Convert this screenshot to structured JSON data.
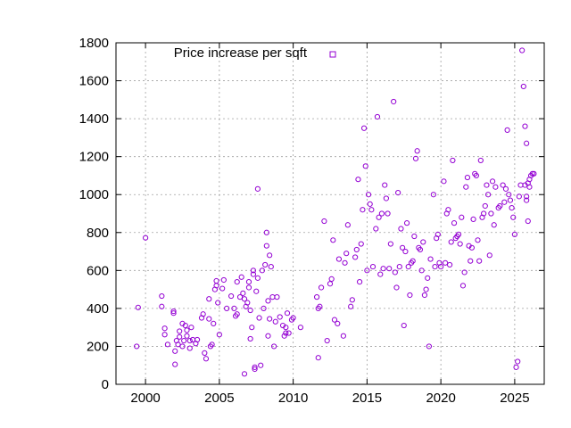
{
  "chart_data": {
    "type": "scatter",
    "title": "",
    "xlabel": "",
    "ylabel": "",
    "xlim": [
      1998,
      2027
    ],
    "ylim": [
      0,
      1800
    ],
    "xticks": [
      2000,
      2005,
      2010,
      2015,
      2020,
      2025
    ],
    "yticks": [
      0,
      200,
      400,
      600,
      800,
      1000,
      1200,
      1400,
      1600,
      1800
    ],
    "grid": true,
    "legend_position": "top",
    "series": [
      {
        "name": "Price increase per sqft",
        "color": "#9400d3",
        "marker": "open-circle",
        "points": [
          [
            1999.4,
            200
          ],
          [
            1999.5,
            405
          ],
          [
            2000.0,
            772
          ],
          [
            2001.1,
            465
          ],
          [
            2001.1,
            410
          ],
          [
            2001.3,
            295
          ],
          [
            2001.3,
            262
          ],
          [
            2001.5,
            210
          ],
          [
            2001.9,
            385
          ],
          [
            2001.9,
            375
          ],
          [
            2002.0,
            105
          ],
          [
            2002.0,
            175
          ],
          [
            2002.1,
            230
          ],
          [
            2002.2,
            210
          ],
          [
            2002.3,
            280
          ],
          [
            2002.3,
            250
          ],
          [
            2002.5,
            320
          ],
          [
            2002.5,
            200
          ],
          [
            2002.6,
            230
          ],
          [
            2002.7,
            310
          ],
          [
            2002.8,
            285
          ],
          [
            2002.8,
            255
          ],
          [
            2003.0,
            230
          ],
          [
            2003.0,
            190
          ],
          [
            2003.1,
            300
          ],
          [
            2003.2,
            235
          ],
          [
            2003.4,
            215
          ],
          [
            2003.5,
            235
          ],
          [
            2003.8,
            350
          ],
          [
            2003.9,
            370
          ],
          [
            2004.0,
            165
          ],
          [
            2004.1,
            135
          ],
          [
            2004.3,
            345
          ],
          [
            2004.3,
            450
          ],
          [
            2004.4,
            200
          ],
          [
            2004.5,
            210
          ],
          [
            2004.6,
            320
          ],
          [
            2004.7,
            500
          ],
          [
            2004.8,
            545
          ],
          [
            2004.8,
            520
          ],
          [
            2004.9,
            430
          ],
          [
            2005.0,
            262
          ],
          [
            2005.2,
            505
          ],
          [
            2005.3,
            550
          ],
          [
            2005.5,
            400
          ],
          [
            2005.8,
            465
          ],
          [
            2006.0,
            400
          ],
          [
            2006.1,
            360
          ],
          [
            2006.2,
            540
          ],
          [
            2006.2,
            370
          ],
          [
            2006.4,
            460
          ],
          [
            2006.5,
            565
          ],
          [
            2006.6,
            480
          ],
          [
            2006.7,
            55
          ],
          [
            2006.7,
            450
          ],
          [
            2006.8,
            410
          ],
          [
            2006.9,
            430
          ],
          [
            2007.0,
            540
          ],
          [
            2007.0,
            510
          ],
          [
            2007.1,
            390
          ],
          [
            2007.1,
            240
          ],
          [
            2007.2,
            300
          ],
          [
            2007.3,
            580
          ],
          [
            2007.3,
            600
          ],
          [
            2007.4,
            90
          ],
          [
            2007.4,
            80
          ],
          [
            2007.5,
            490
          ],
          [
            2007.6,
            560
          ],
          [
            2007.6,
            1030
          ],
          [
            2007.7,
            350
          ],
          [
            2007.8,
            100
          ],
          [
            2007.9,
            600
          ],
          [
            2008.0,
            400
          ],
          [
            2008.1,
            630
          ],
          [
            2008.2,
            730
          ],
          [
            2008.2,
            800
          ],
          [
            2008.3,
            440
          ],
          [
            2008.3,
            255
          ],
          [
            2008.4,
            680
          ],
          [
            2008.4,
            345
          ],
          [
            2008.5,
            620
          ],
          [
            2008.6,
            460
          ],
          [
            2008.7,
            200
          ],
          [
            2008.8,
            330
          ],
          [
            2008.9,
            460
          ],
          [
            2009.1,
            355
          ],
          [
            2009.3,
            310
          ],
          [
            2009.4,
            255
          ],
          [
            2009.5,
            270
          ],
          [
            2009.5,
            300
          ],
          [
            2009.6,
            375
          ],
          [
            2009.7,
            270
          ],
          [
            2009.9,
            340
          ],
          [
            2010.0,
            350
          ],
          [
            2010.5,
            300
          ],
          [
            2011.6,
            460
          ],
          [
            2011.7,
            400
          ],
          [
            2011.7,
            140
          ],
          [
            2011.8,
            410
          ],
          [
            2011.9,
            510
          ],
          [
            2012.1,
            860
          ],
          [
            2012.3,
            230
          ],
          [
            2012.5,
            530
          ],
          [
            2012.6,
            555
          ],
          [
            2012.7,
            760
          ],
          [
            2012.8,
            340
          ],
          [
            2013.0,
            320
          ],
          [
            2013.1,
            660
          ],
          [
            2013.4,
            255
          ],
          [
            2013.5,
            640
          ],
          [
            2013.6,
            690
          ],
          [
            2013.7,
            840
          ],
          [
            2013.9,
            410
          ],
          [
            2014.0,
            445
          ],
          [
            2014.2,
            670
          ],
          [
            2014.3,
            710
          ],
          [
            2014.4,
            1080
          ],
          [
            2014.5,
            540
          ],
          [
            2014.6,
            740
          ],
          [
            2014.7,
            920
          ],
          [
            2014.8,
            1350
          ],
          [
            2014.9,
            1150
          ],
          [
            2015.0,
            600
          ],
          [
            2015.1,
            1000
          ],
          [
            2015.2,
            950
          ],
          [
            2015.3,
            920
          ],
          [
            2015.4,
            620
          ],
          [
            2015.6,
            820
          ],
          [
            2015.7,
            1410
          ],
          [
            2015.8,
            880
          ],
          [
            2015.9,
            580
          ],
          [
            2016.0,
            900
          ],
          [
            2016.1,
            610
          ],
          [
            2016.2,
            1050
          ],
          [
            2016.3,
            980
          ],
          [
            2016.4,
            900
          ],
          [
            2016.5,
            610
          ],
          [
            2016.6,
            740
          ],
          [
            2016.8,
            1490
          ],
          [
            2016.9,
            590
          ],
          [
            2017.0,
            510
          ],
          [
            2017.1,
            1010
          ],
          [
            2017.2,
            620
          ],
          [
            2017.3,
            820
          ],
          [
            2017.4,
            720
          ],
          [
            2017.5,
            310
          ],
          [
            2017.6,
            700
          ],
          [
            2017.7,
            850
          ],
          [
            2017.8,
            620
          ],
          [
            2017.9,
            470
          ],
          [
            2018.0,
            640
          ],
          [
            2018.1,
            650
          ],
          [
            2018.2,
            780
          ],
          [
            2018.3,
            1190
          ],
          [
            2018.4,
            1230
          ],
          [
            2018.5,
            720
          ],
          [
            2018.6,
            710
          ],
          [
            2018.7,
            600
          ],
          [
            2018.8,
            750
          ],
          [
            2018.9,
            470
          ],
          [
            2019.0,
            500
          ],
          [
            2019.1,
            560
          ],
          [
            2019.2,
            200
          ],
          [
            2019.3,
            660
          ],
          [
            2019.5,
            1000
          ],
          [
            2019.6,
            620
          ],
          [
            2019.7,
            770
          ],
          [
            2019.8,
            790
          ],
          [
            2019.9,
            640
          ],
          [
            2020.0,
            620
          ],
          [
            2020.2,
            1070
          ],
          [
            2020.3,
            640
          ],
          [
            2020.4,
            900
          ],
          [
            2020.5,
            920
          ],
          [
            2020.6,
            630
          ],
          [
            2020.7,
            750
          ],
          [
            2020.8,
            1180
          ],
          [
            2020.9,
            850
          ],
          [
            2021.0,
            770
          ],
          [
            2021.1,
            780
          ],
          [
            2021.2,
            790
          ],
          [
            2021.3,
            740
          ],
          [
            2021.4,
            880
          ],
          [
            2021.5,
            520
          ],
          [
            2021.6,
            590
          ],
          [
            2021.7,
            1040
          ],
          [
            2021.8,
            1090
          ],
          [
            2021.9,
            730
          ],
          [
            2022.0,
            650
          ],
          [
            2022.1,
            720
          ],
          [
            2022.2,
            870
          ],
          [
            2022.3,
            1110
          ],
          [
            2022.4,
            1100
          ],
          [
            2022.5,
            760
          ],
          [
            2022.6,
            650
          ],
          [
            2022.7,
            1180
          ],
          [
            2022.8,
            880
          ],
          [
            2022.9,
            900
          ],
          [
            2023.0,
            940
          ],
          [
            2023.1,
            1050
          ],
          [
            2023.2,
            1000
          ],
          [
            2023.3,
            680
          ],
          [
            2023.4,
            900
          ],
          [
            2023.5,
            1070
          ],
          [
            2023.6,
            840
          ],
          [
            2023.7,
            1040
          ],
          [
            2023.9,
            930
          ],
          [
            2024.0,
            940
          ],
          [
            2024.2,
            1050
          ],
          [
            2024.3,
            960
          ],
          [
            2024.4,
            1030
          ],
          [
            2024.5,
            1340
          ],
          [
            2024.6,
            1000
          ],
          [
            2024.7,
            970
          ],
          [
            2024.8,
            930
          ],
          [
            2024.9,
            880
          ],
          [
            2025.0,
            790
          ],
          [
            2025.1,
            90
          ],
          [
            2025.2,
            120
          ],
          [
            2025.3,
            990
          ],
          [
            2025.4,
            1050
          ],
          [
            2025.5,
            1760
          ],
          [
            2025.6,
            1570
          ],
          [
            2025.7,
            1360
          ],
          [
            2025.8,
            1270
          ],
          [
            2025.9,
            1060
          ],
          [
            2026.0,
            1080
          ],
          [
            2026.1,
            1100
          ],
          [
            2026.2,
            1110
          ],
          [
            2026.3,
            1110
          ],
          [
            2025.9,
            860
          ],
          [
            2025.8,
            990
          ],
          [
            2025.7,
            1050
          ],
          [
            2025.8,
            970
          ],
          [
            2026.0,
            1040
          ]
        ]
      }
    ]
  }
}
